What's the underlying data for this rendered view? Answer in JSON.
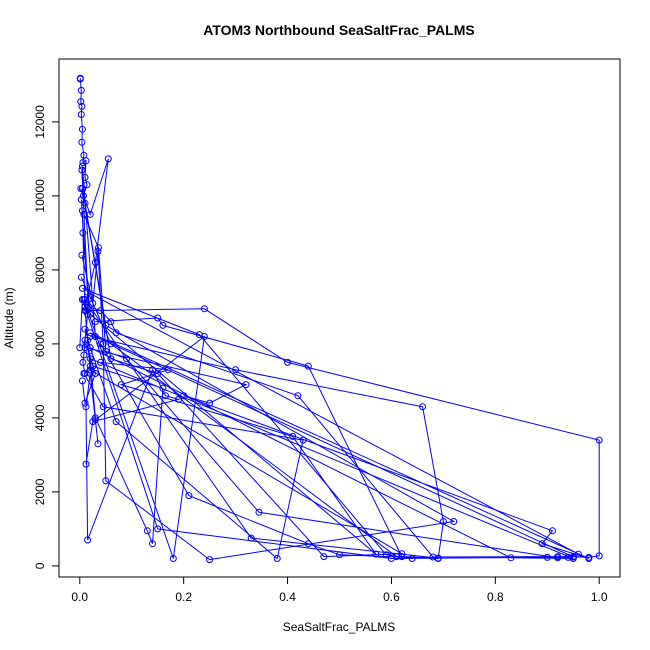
{
  "chart_data": {
    "type": "line",
    "title": "ATOM3 Northbound SeaSaltFrac_PALMS",
    "xlabel": "SeaSaltFrac_PALMS",
    "ylabel": "Altitude (m)",
    "xlim": [
      -0.04,
      1.04
    ],
    "ylim": [
      -300,
      13700
    ],
    "xticks": [
      0.0,
      0.2,
      0.4,
      0.6,
      0.8,
      1.0
    ],
    "xtick_labels": [
      "0.0",
      "0.2",
      "0.4",
      "0.6",
      "0.8",
      "1.0"
    ],
    "yticks": [
      0,
      2000,
      4000,
      6000,
      8000,
      10000,
      12000
    ],
    "ytick_labels": [
      "0",
      "2000",
      "4000",
      "6000",
      "8000",
      "10000",
      "12000"
    ],
    "grid": false,
    "marker": "open-circle",
    "series_color": "#0000ff",
    "series": [
      {
        "x": [
          0.001,
          0.001,
          0.003,
          0.002,
          0.004,
          0.003,
          0.005,
          0.004,
          0.008,
          0.006,
          0.012,
          0.01,
          0.014,
          0.007,
          0.02,
          0.055,
          0.03,
          0.01
        ],
        "y": [
          13180,
          13160,
          12850,
          12550,
          12420,
          12200,
          11800,
          11450,
          11100,
          10900,
          10950,
          10500,
          10300,
          10000,
          9500,
          11000,
          8200,
          7000
        ]
      },
      {
        "x": [
          0.012,
          0.24,
          0.4,
          1.0,
          1.0,
          0.98,
          0.95,
          0.94,
          0.9,
          0.6,
          0.15,
          0.01
        ],
        "y": [
          6900,
          6950,
          5500,
          3400,
          270,
          230,
          250,
          230,
          230,
          200,
          1000,
          7000
        ]
      },
      {
        "x": [
          0.02,
          0.3,
          0.66,
          0.7,
          0.69,
          0.5,
          0.44,
          0.21,
          0.04
        ],
        "y": [
          6200,
          5300,
          4300,
          1200,
          200,
          300,
          600,
          1900,
          6000
        ]
      },
      {
        "x": [
          0.03,
          0.15,
          0.16,
          0.44,
          0.62,
          0.69,
          0.33,
          0.01
        ],
        "y": [
          6600,
          6700,
          6500,
          5400,
          250,
          210,
          750,
          7200
        ]
      },
      {
        "x": [
          0.005,
          0.23,
          0.59,
          0.64,
          0.61,
          0.06,
          0.003
        ],
        "y": [
          7500,
          6250,
          300,
          200,
          250,
          6000,
          7800
        ]
      },
      {
        "x": [
          0.01,
          0.32,
          0.25,
          0.2,
          0.91,
          0.89,
          0.98,
          0.02
        ],
        "y": [
          5900,
          4900,
          4400,
          4600,
          950,
          600,
          200,
          6300
        ]
      },
      {
        "x": [
          0.04,
          0.17,
          0.08,
          0.41,
          0.57,
          0.02,
          0.006
        ],
        "y": [
          5500,
          5300,
          4900,
          3500,
          320,
          6800,
          9000
        ]
      },
      {
        "x": [
          0.008,
          0.045,
          0.43,
          0.38,
          0.07,
          0.015
        ],
        "y": [
          5200,
          4300,
          3400,
          200,
          3900,
          6100
        ]
      },
      {
        "x": [
          0.025,
          0.16,
          0.14,
          0.13,
          0.03,
          0.02,
          0.95,
          0.83,
          0.02,
          0.01
        ],
        "y": [
          5400,
          4800,
          600,
          950,
          4000,
          5600,
          200,
          220,
          5900,
          6400
        ]
      },
      {
        "x": [
          0.012,
          0.025,
          0.19,
          0.165,
          0.14,
          0.015,
          0.012,
          0.02,
          0.035,
          0.03,
          0.24,
          0.18,
          0.008
        ],
        "y": [
          2750,
          3900,
          4500,
          4600,
          5300,
          700,
          4300,
          5200,
          3300,
          3950,
          6200,
          200,
          7200
        ]
      },
      {
        "x": [
          0.004,
          0.025,
          0.035,
          0.045,
          0.05,
          0.25,
          0.72,
          0.05,
          0.01,
          0.002
        ],
        "y": [
          8400,
          7100,
          8500,
          6000,
          2300,
          170,
          1200,
          6500,
          9800,
          10200
        ]
      },
      {
        "x": [
          0.003,
          0.017,
          0.04,
          0.06,
          0.07,
          0.42,
          0.68,
          0.92,
          0.95,
          0.03,
          0.005
        ],
        "y": [
          9900,
          7000,
          6900,
          6600,
          6300,
          4600,
          240,
          250,
          240,
          6200,
          10800
        ]
      },
      {
        "x": [
          0.008,
          0.036,
          0.05,
          0.09,
          0.345,
          0.92,
          0.96,
          0.015,
          0.004
        ],
        "y": [
          9500,
          8600,
          5800,
          5600,
          1450,
          220,
          320,
          7400,
          10700
        ]
      },
      {
        "x": [
          0.005,
          0.06,
          0.15,
          0.47,
          0.62,
          0.02,
          0.01,
          0.005
        ],
        "y": [
          10200,
          5600,
          5200,
          250,
          330,
          5300,
          6900,
          9600
        ]
      },
      {
        "x": [
          0.0,
          0.005,
          0.01,
          0.015,
          0.01,
          0.008,
          0.006,
          0.01,
          0.02,
          0.018,
          0.012,
          0.03,
          0.01,
          0.005
        ],
        "y": [
          5900,
          7200,
          7000,
          6800,
          6100,
          5700,
          5500,
          5200,
          5400,
          5800,
          6000,
          5200,
          4400,
          5000
        ]
      }
    ]
  }
}
